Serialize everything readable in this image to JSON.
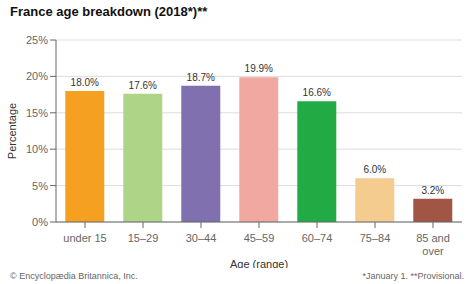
{
  "chart_data": {
    "type": "bar",
    "title": "France age breakdown (2018*)**",
    "xlabel": "Age (range)",
    "ylabel": "Percentage",
    "categories": [
      "under 15",
      "15–29",
      "30–44",
      "45–59",
      "60–74",
      "75–84",
      "85 and\nover"
    ],
    "values": [
      18.0,
      17.6,
      18.7,
      19.9,
      16.6,
      6.0,
      3.2
    ],
    "value_labels": [
      "18.0%",
      "17.6%",
      "18.7%",
      "19.9%",
      "16.6%",
      "6.0%",
      "3.2%"
    ],
    "colors": [
      "#f5a020",
      "#aed488",
      "#8070b0",
      "#f0a8a0",
      "#22aa44",
      "#f5cc90",
      "#a05545"
    ],
    "ylim": [
      0,
      25
    ],
    "yticks": [
      {
        "value": 0,
        "label": "0%"
      },
      {
        "value": 5,
        "label": "5%"
      },
      {
        "value": 10,
        "label": "10%"
      },
      {
        "value": 15,
        "label": "15%"
      },
      {
        "value": 20,
        "label": "20%"
      },
      {
        "value": 25,
        "label": "25%"
      }
    ],
    "grid": true,
    "data_labels": true,
    "annotations": [
      "© Encyclopædia Britannica, Inc.",
      "*January 1. **Provisional."
    ]
  }
}
